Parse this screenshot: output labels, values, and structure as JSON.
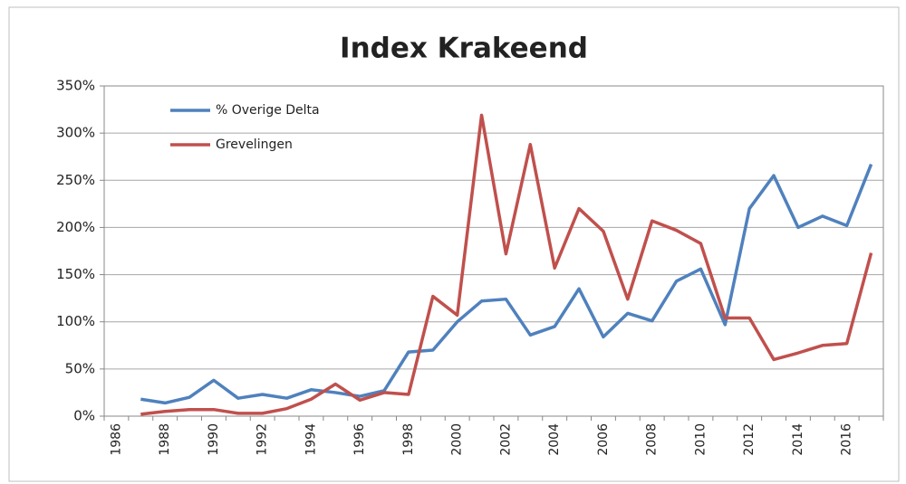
{
  "chart_data": {
    "type": "line",
    "title": "Index Krakeend",
    "categories": [
      "1986",
      null,
      "1988",
      null,
      "1990",
      null,
      "1992",
      null,
      "1994",
      null,
      "1996",
      null,
      "1998",
      null,
      "2000",
      null,
      "2002",
      null,
      "2004",
      null,
      "2006",
      null,
      "2008",
      null,
      "2010",
      null,
      "2012",
      null,
      "2014",
      null,
      "2016",
      null
    ],
    "series": [
      {
        "name": "% Overige Delta",
        "color": "#4f81bd",
        "values": [
          null,
          18,
          14,
          20,
          38,
          19,
          23,
          19,
          28,
          25,
          21,
          27,
          68,
          70,
          100,
          122,
          124,
          86,
          95,
          135,
          84,
          109,
          101,
          143,
          156,
          97,
          220,
          255,
          200,
          212,
          202,
          267
        ]
      },
      {
        "name": "Grevelingen",
        "color": "#c0504d",
        "values": [
          null,
          2,
          5,
          7,
          7,
          3,
          3,
          8,
          18,
          34,
          17,
          25,
          23,
          127,
          107,
          319,
          172,
          288,
          157,
          220,
          196,
          124,
          207,
          197,
          183,
          104,
          104,
          60,
          67,
          75,
          77,
          173
        ]
      }
    ],
    "ylim": [
      0,
      350
    ],
    "yticks": [
      {
        "value": 0,
        "label": "0%"
      },
      {
        "value": 50,
        "label": "50%"
      },
      {
        "value": 100,
        "label": "100%"
      },
      {
        "value": 150,
        "label": "150%"
      },
      {
        "value": 200,
        "label": "200%"
      },
      {
        "value": 250,
        "label": "250%"
      },
      {
        "value": 300,
        "label": "300%"
      },
      {
        "value": 350,
        "label": "350%"
      }
    ],
    "grid": true,
    "legend": "top-left"
  }
}
